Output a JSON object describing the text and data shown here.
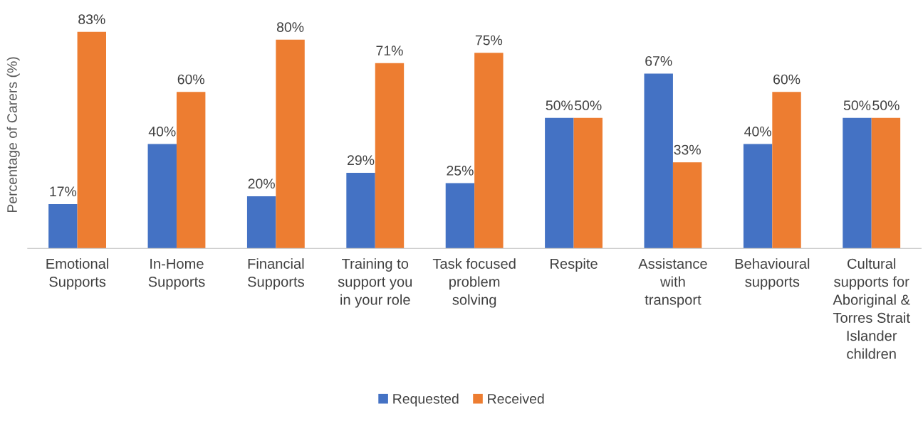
{
  "chart_data": {
    "type": "bar",
    "ylabel": "Percentage of Carers (%)",
    "categories": [
      "Emotional\nSupports",
      "In-Home\nSupports",
      "Financial\nSupports",
      "Training to\nsupport you\nin your role",
      "Task focused\nproblem\nsolving",
      "Respite",
      "Assistance\nwith\ntransport",
      "Behavioural\nsupports",
      "Cultural\nsupports for\nAboriginal &\nTorres Strait\nIslander\nchildren"
    ],
    "series": [
      {
        "name": "Requested",
        "color": "#4472c4",
        "values": [
          17,
          40,
          20,
          29,
          25,
          50,
          67,
          40,
          50
        ],
        "value_labels": [
          "17%",
          "40%",
          "20%",
          "29%",
          "25%",
          "50%",
          "67%",
          "40%",
          "50%"
        ]
      },
      {
        "name": "Received",
        "color": "#ed7d31",
        "values": [
          83,
          60,
          80,
          71,
          75,
          50,
          33,
          60,
          50
        ],
        "value_labels": [
          "83%",
          "60%",
          "80%",
          "71%",
          "75%",
          "50%",
          "33%",
          "60%",
          "50%"
        ]
      }
    ],
    "tick_labels": "x",
    "grid": false,
    "legend": "bottom"
  }
}
